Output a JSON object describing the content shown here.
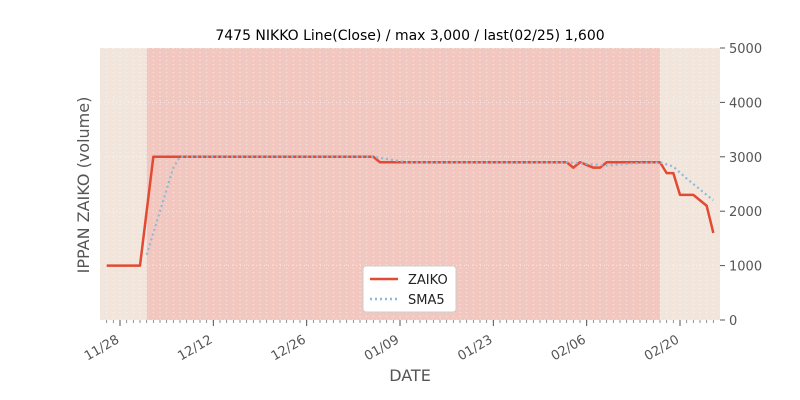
{
  "chart_data": {
    "type": "line",
    "title": "7475 NIKKO Line(Close) / max 3,000 / last(02/25) 1,600",
    "xlabel": "DATE",
    "ylabel": "IPPAN ZAIKO (volume)",
    "ylim": [
      0,
      5000
    ],
    "yticks": [
      "0",
      "1000",
      "2000",
      "3000",
      "4000",
      "5000"
    ],
    "xticks": [
      {
        "date": "2022-11-28",
        "label": "11/28"
      },
      {
        "date": "2022-12-12",
        "label": "12/12"
      },
      {
        "date": "2022-12-26",
        "label": "12/26"
      },
      {
        "date": "2023-01-09",
        "label": "01/09"
      },
      {
        "date": "2023-01-23",
        "label": "01/23"
      },
      {
        "date": "2023-02-06",
        "label": "02/06"
      },
      {
        "date": "2023-02-20",
        "label": "02/20"
      }
    ],
    "xlim": [
      "2022-11-25",
      "2023-02-26"
    ],
    "grid": true,
    "legend_position": "bottom-center",
    "colors": {
      "zaiko": "#e24a33",
      "sma": "#8eb9d9",
      "background": "#e5e5e5",
      "band_light": "#f2e6dc",
      "band_red": "#f2c7bf"
    },
    "bands": [
      {
        "from": "2022-11-25",
        "to": "2022-12-02",
        "color": "band_light"
      },
      {
        "from": "2022-12-02",
        "to": "2023-02-17",
        "color": "band_red"
      },
      {
        "from": "2023-02-17",
        "to": "2023-02-26",
        "color": "band_light"
      }
    ],
    "series": [
      {
        "name": "ZAIKO",
        "style": "solid",
        "points": [
          [
            "2022-11-26",
            1000
          ],
          [
            "2022-11-27",
            1000
          ],
          [
            "2022-11-28",
            1000
          ],
          [
            "2022-11-29",
            1000
          ],
          [
            "2022-11-30",
            1000
          ],
          [
            "2022-12-01",
            1000
          ],
          [
            "2022-12-02",
            2000
          ],
          [
            "2022-12-03",
            3000
          ],
          [
            "2022-12-05",
            3000
          ],
          [
            "2022-12-12",
            3000
          ],
          [
            "2022-12-19",
            3000
          ],
          [
            "2022-12-26",
            3000
          ],
          [
            "2023-01-02",
            3000
          ],
          [
            "2023-01-05",
            3000
          ],
          [
            "2023-01-06",
            2900
          ],
          [
            "2023-01-09",
            2900
          ],
          [
            "2023-01-16",
            2900
          ],
          [
            "2023-01-23",
            2900
          ],
          [
            "2023-01-30",
            2900
          ],
          [
            "2023-02-03",
            2900
          ],
          [
            "2023-02-04",
            2800
          ],
          [
            "2023-02-05",
            2900
          ],
          [
            "2023-02-06",
            2850
          ],
          [
            "2023-02-07",
            2800
          ],
          [
            "2023-02-08",
            2800
          ],
          [
            "2023-02-09",
            2900
          ],
          [
            "2023-02-10",
            2900
          ],
          [
            "2023-02-13",
            2900
          ],
          [
            "2023-02-16",
            2900
          ],
          [
            "2023-02-17",
            2900
          ],
          [
            "2023-02-18",
            2700
          ],
          [
            "2023-02-19",
            2700
          ],
          [
            "2023-02-20",
            2300
          ],
          [
            "2023-02-21",
            2300
          ],
          [
            "2023-02-22",
            2300
          ],
          [
            "2023-02-24",
            2100
          ],
          [
            "2023-02-25",
            1600
          ]
        ]
      },
      {
        "name": "SMA5",
        "style": "dotted",
        "points": [
          [
            "2022-12-02",
            1200
          ],
          [
            "2022-12-03",
            1600
          ],
          [
            "2022-12-04",
            2000
          ],
          [
            "2022-12-05",
            2400
          ],
          [
            "2022-12-06",
            2800
          ],
          [
            "2022-12-07",
            3000
          ],
          [
            "2022-12-12",
            3000
          ],
          [
            "2022-12-19",
            3000
          ],
          [
            "2022-12-26",
            3000
          ],
          [
            "2023-01-05",
            3000
          ],
          [
            "2023-01-06",
            2980
          ],
          [
            "2023-01-07",
            2960
          ],
          [
            "2023-01-08",
            2940
          ],
          [
            "2023-01-09",
            2920
          ],
          [
            "2023-01-10",
            2900
          ],
          [
            "2023-01-23",
            2900
          ],
          [
            "2023-02-03",
            2900
          ],
          [
            "2023-02-05",
            2880
          ],
          [
            "2023-02-07",
            2860
          ],
          [
            "2023-02-09",
            2840
          ],
          [
            "2023-02-11",
            2860
          ],
          [
            "2023-02-13",
            2880
          ],
          [
            "2023-02-17",
            2900
          ],
          [
            "2023-02-19",
            2820
          ],
          [
            "2023-02-21",
            2600
          ],
          [
            "2023-02-23",
            2400
          ],
          [
            "2023-02-25",
            2200
          ]
        ]
      }
    ]
  }
}
